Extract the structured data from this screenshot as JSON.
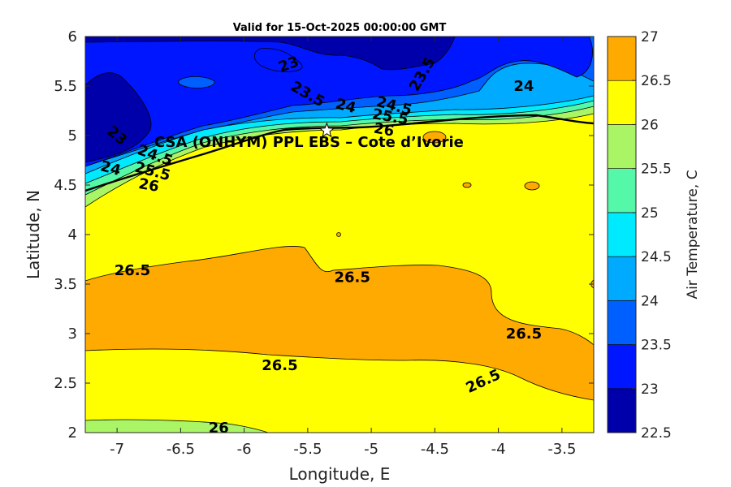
{
  "chart_data": {
    "type": "contour",
    "title": "Valid for 15-Oct-2025 00:00:00 GMT",
    "xlabel": "Longitude, E",
    "ylabel": "Latitude, N",
    "xlim": [
      -7.25,
      -3.25
    ],
    "ylim": [
      2,
      6
    ],
    "xticks": [
      -7,
      -6.5,
      -6,
      -5.5,
      -5,
      -4.5,
      -4,
      -3.5
    ],
    "yticks": [
      2,
      2.5,
      3,
      3.5,
      4,
      4.5,
      5,
      5.5,
      6
    ],
    "colorbar": {
      "label": "Air Temperature, C",
      "ticks": [
        22.5,
        23,
        23.5,
        24,
        24.5,
        25,
        25.5,
        26,
        26.5,
        27
      ],
      "colors": [
        "#0000aa",
        "#0016ff",
        "#0060ff",
        "#00aaff",
        "#00eaff",
        "#55f7a8",
        "#aaf565",
        "#ffff00",
        "#ffaa00",
        "#ff5500"
      ]
    },
    "site": {
      "name": "CSA (ONHYM) PPL EBS  – Cote d’Ivorie",
      "lon": -5.35,
      "lat": 5.05,
      "marker": "star"
    },
    "contour_labels": [
      {
        "value": "23",
        "lon": -5.65,
        "lat": 5.72,
        "angle": 20
      },
      {
        "value": "23.5",
        "lon": -4.6,
        "lat": 5.62,
        "angle": 60
      },
      {
        "value": "24",
        "lon": -3.8,
        "lat": 5.5,
        "angle": 0
      },
      {
        "value": "23.5",
        "lon": -5.5,
        "lat": 5.42,
        "angle": -30
      },
      {
        "value": "24",
        "lon": -5.2,
        "lat": 5.3,
        "angle": -15
      },
      {
        "value": "24.5",
        "lon": -4.82,
        "lat": 5.3,
        "angle": -15
      },
      {
        "value": "25.5",
        "lon": -4.85,
        "lat": 5.19,
        "angle": -10
      },
      {
        "value": "26",
        "lon": -4.9,
        "lat": 5.06,
        "angle": -10
      },
      {
        "value": "23",
        "lon": -7.0,
        "lat": 5.0,
        "angle": -40
      },
      {
        "value": "24",
        "lon": -7.05,
        "lat": 4.67,
        "angle": -15
      },
      {
        "value": "24.5",
        "lon": -6.7,
        "lat": 4.8,
        "angle": -20
      },
      {
        "value": "25.5",
        "lon": -6.72,
        "lat": 4.64,
        "angle": -15
      },
      {
        "value": "26",
        "lon": -6.75,
        "lat": 4.5,
        "angle": -10
      },
      {
        "value": "26.5",
        "lon": -6.88,
        "lat": 3.64,
        "angle": 0
      },
      {
        "value": "26.5",
        "lon": -5.15,
        "lat": 3.57,
        "angle": 0
      },
      {
        "value": "26.5",
        "lon": -3.8,
        "lat": 3.0,
        "angle": 0
      },
      {
        "value": "26.5",
        "lon": -5.72,
        "lat": 2.68,
        "angle": 0
      },
      {
        "value": "26.5",
        "lon": -4.12,
        "lat": 2.52,
        "angle": 25
      },
      {
        "value": "26",
        "lon": -6.2,
        "lat": 2.05,
        "angle": 0
      }
    ]
  }
}
